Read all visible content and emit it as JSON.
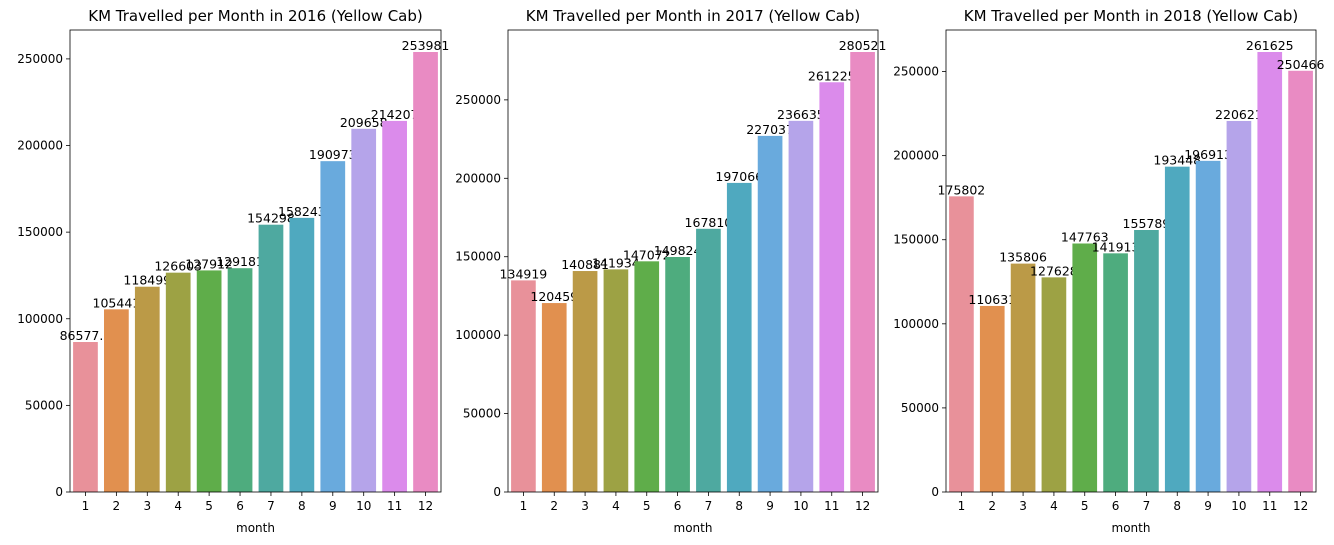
{
  "chart_data": [
    {
      "type": "bar",
      "title": "KM Travelled per Month in 2016 (Yellow Cab)",
      "xlabel": "month",
      "ylabel": "",
      "categories": [
        "1",
        "2",
        "3",
        "4",
        "5",
        "6",
        "7",
        "8",
        "9",
        "10",
        "11",
        "12"
      ],
      "values": [
        86577.1,
        105441,
        118499,
        126603,
        127912,
        129181,
        154298,
        158243,
        190973,
        209658,
        214207,
        253981
      ],
      "value_labels": [
        "86577.1",
        "105441",
        "118499",
        "126603",
        "127912",
        "129181",
        "154298",
        "158243",
        "190973",
        "209658",
        "214207",
        "253981"
      ],
      "yticks": [
        0,
        50000,
        100000,
        150000,
        200000,
        250000
      ],
      "ytick_labels": [
        "0",
        "50000",
        "100000",
        "150000",
        "200000",
        "250000"
      ],
      "ylim": [
        0,
        266680
      ],
      "grid": false
    },
    {
      "type": "bar",
      "title": "KM Travelled per Month in 2017 (Yellow Cab)",
      "xlabel": "month",
      "ylabel": "",
      "categories": [
        "1",
        "2",
        "3",
        "4",
        "5",
        "6",
        "7",
        "8",
        "9",
        "10",
        "11",
        "12"
      ],
      "values": [
        134919,
        120459,
        140881,
        141934,
        147072,
        149824,
        167810,
        197066,
        227037,
        236635,
        261225,
        280521
      ],
      "value_labels": [
        "134919",
        "120459",
        "140881",
        "141934",
        "147072",
        "149824",
        "167810",
        "197066",
        "227037",
        "236635",
        "261225",
        "280521"
      ],
      "yticks": [
        0,
        50000,
        100000,
        150000,
        200000,
        250000
      ],
      "ytick_labels": [
        "0",
        "50000",
        "100000",
        "150000",
        "200000",
        "250000"
      ],
      "ylim": [
        0,
        294547
      ],
      "grid": false
    },
    {
      "type": "bar",
      "title": "KM Travelled per Month in 2018 (Yellow Cab)",
      "xlabel": "month",
      "ylabel": "",
      "categories": [
        "1",
        "2",
        "3",
        "4",
        "5",
        "6",
        "7",
        "8",
        "9",
        "10",
        "11",
        "12"
      ],
      "values": [
        175802,
        110631,
        135806,
        127628,
        147763,
        141913,
        155789,
        193448,
        196913,
        220621,
        261625,
        250466
      ],
      "value_labels": [
        "175802",
        "110631",
        "135806",
        "127628",
        "147763",
        "141913",
        "155789",
        "193448",
        "196913",
        "220621",
        "261625",
        "250466"
      ],
      "yticks": [
        0,
        50000,
        100000,
        150000,
        200000,
        250000
      ],
      "ytick_labels": [
        "0",
        "50000",
        "100000",
        "150000",
        "200000",
        "250000"
      ],
      "ylim": [
        0,
        274706
      ],
      "grid": false
    }
  ],
  "colors": [
    "#e8919a",
    "#e1904f",
    "#bb9a47",
    "#9da244",
    "#5fad4a",
    "#4eac7e",
    "#4ea9a0",
    "#4fa9bf",
    "#69aadd",
    "#b5a4ea",
    "#db8beb",
    "#e98bc3"
  ]
}
